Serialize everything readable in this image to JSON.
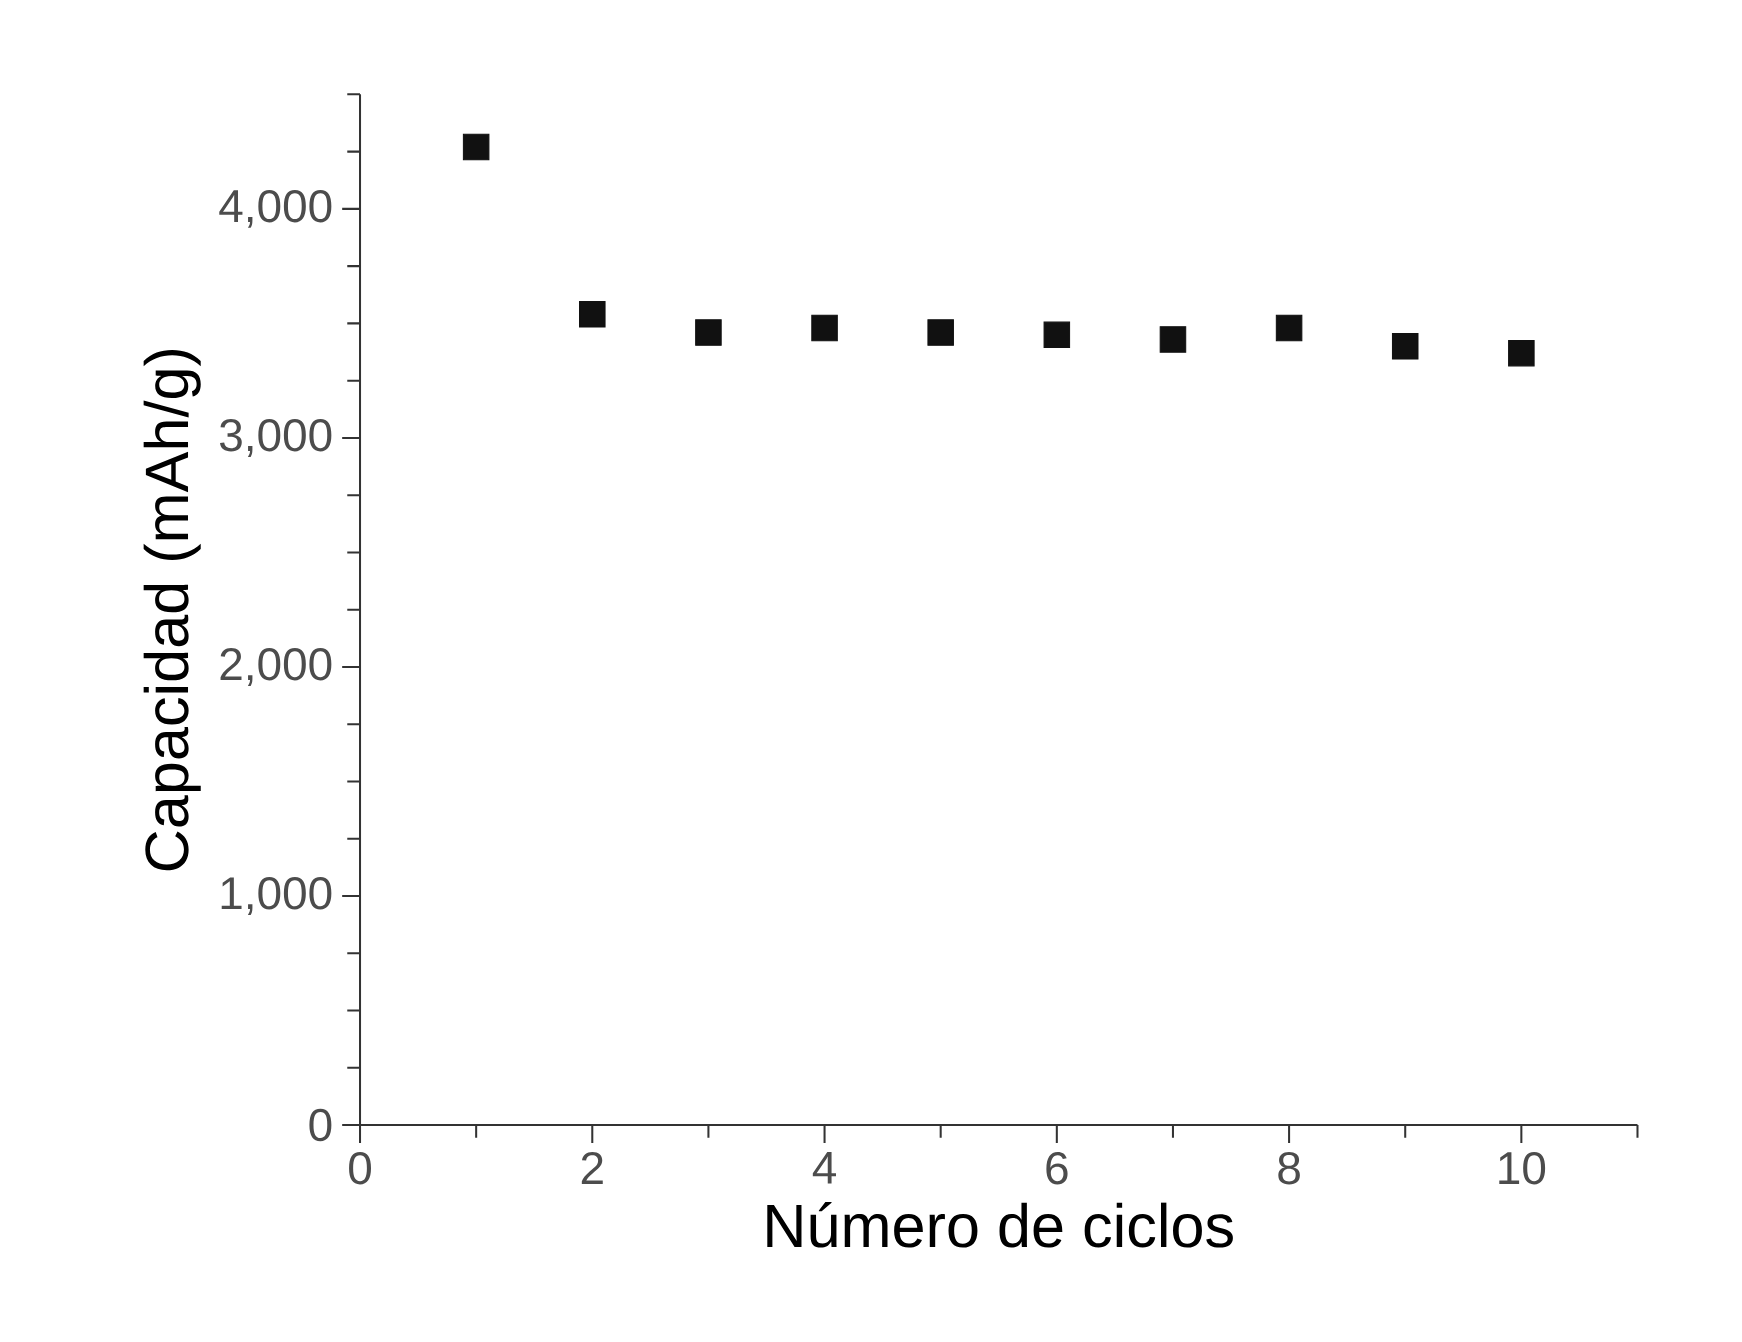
{
  "chart_data": {
    "type": "scatter",
    "xlabel": "Número de ciclos",
    "ylabel": "Capacidad (mAh/g)",
    "x": [
      1,
      2,
      3,
      4,
      5,
      6,
      7,
      8,
      9,
      10
    ],
    "values": [
      4270,
      3540,
      3460,
      3480,
      3460,
      3450,
      3430,
      3480,
      3400,
      3370
    ],
    "color": "#111111",
    "marker": "square",
    "xlim": [
      0,
      11
    ],
    "ylim": [
      0,
      4500
    ],
    "xticks": [
      0,
      {
        "value": 1,
        "label": null
      },
      2,
      {
        "value": 3,
        "label": null
      },
      4,
      {
        "value": 5,
        "label": null
      },
      6,
      {
        "value": 7,
        "label": null
      },
      8,
      {
        "value": 9,
        "label": null
      },
      10,
      {
        "value": 11,
        "label": null
      }
    ],
    "yticks": [
      {
        "value": 0,
        "label": "0"
      },
      {
        "value": 250,
        "label": null
      },
      {
        "value": 500,
        "label": null
      },
      {
        "value": 750,
        "label": null
      },
      {
        "value": 1000,
        "label": "1,000"
      },
      {
        "value": 1250,
        "label": null
      },
      {
        "value": 1500,
        "label": null
      },
      {
        "value": 1750,
        "label": null
      },
      {
        "value": 2000,
        "label": "2,000"
      },
      {
        "value": 2250,
        "label": null
      },
      {
        "value": 2500,
        "label": null
      },
      {
        "value": 2750,
        "label": null
      },
      {
        "value": 3000,
        "label": "3,000"
      },
      {
        "value": 3250,
        "label": null
      },
      {
        "value": 3500,
        "label": null
      },
      {
        "value": 3750,
        "label": null
      },
      {
        "value": 4000,
        "label": "4,000"
      },
      {
        "value": 4250,
        "label": null
      },
      {
        "value": 4500,
        "label": null
      }
    ],
    "grid": false
  }
}
